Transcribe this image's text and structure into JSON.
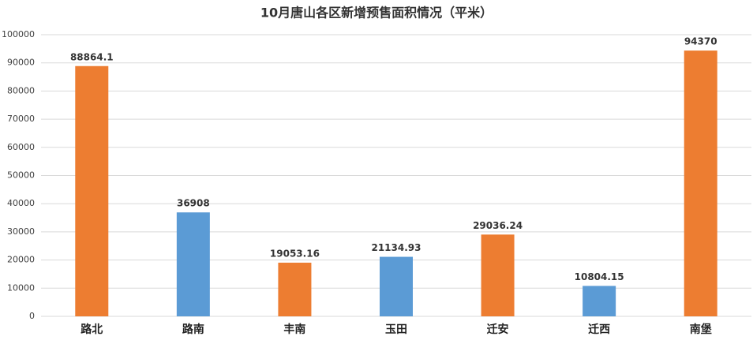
{
  "chart_data": {
    "type": "bar",
    "title": "10月唐山各区新增预售面积情况（平米）",
    "categories": [
      "路北",
      "路南",
      "丰南",
      "玉田",
      "迁安",
      "迁西",
      "南堡"
    ],
    "values": [
      88864.1,
      36908,
      19053.16,
      21134.93,
      29036.24,
      10804.15,
      94370
    ],
    "colors": [
      "#ED7D31",
      "#5B9BD5",
      "#ED7D31",
      "#5B9BD5",
      "#ED7D31",
      "#5B9BD5",
      "#ED7D31"
    ],
    "ylim": [
      0,
      100000
    ],
    "yticks": [
      0,
      10000,
      20000,
      30000,
      40000,
      50000,
      60000,
      70000,
      80000,
      90000,
      100000
    ],
    "grid": true
  }
}
